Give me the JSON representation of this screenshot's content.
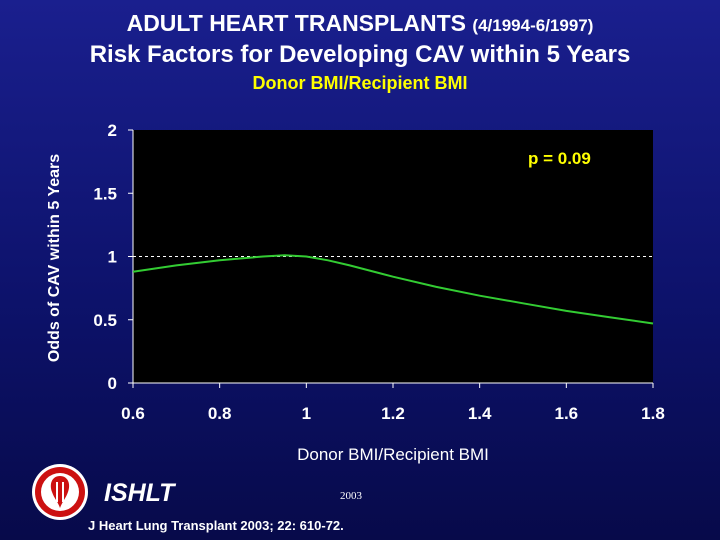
{
  "header": {
    "title_main": "ADULT HEART TRANSPLANTS",
    "title_range": "(4/1994-6/1997)",
    "title_line2": "Risk Factors for Developing CAV within 5 Years",
    "subtitle": "Donor BMI/Recipient BMI"
  },
  "chart_data": {
    "type": "line",
    "xlabel": "Donor BMI/Recipient BMI",
    "ylabel": "Odds of CAV within 5 Years",
    "xlim": [
      0.6,
      1.8
    ],
    "ylim": [
      0,
      2
    ],
    "x_ticks": [
      "0.6",
      "0.8",
      "1",
      "1.2",
      "1.4",
      "1.6",
      "1.8"
    ],
    "y_ticks": [
      "0",
      "0.5",
      "1",
      "1.5",
      "2"
    ],
    "series": [
      {
        "color": "#33cc33",
        "x": [
          0.6,
          0.7,
          0.8,
          0.9,
          0.95,
          1.0,
          1.05,
          1.1,
          1.2,
          1.3,
          1.4,
          1.5,
          1.6,
          1.7,
          1.8
        ],
        "y": [
          0.88,
          0.93,
          0.97,
          1.0,
          1.01,
          1.0,
          0.97,
          0.93,
          0.84,
          0.76,
          0.69,
          0.63,
          0.57,
          0.52,
          0.47
        ]
      }
    ],
    "reference_line": {
      "y": 1.0,
      "style": "dashed",
      "color": "#ffffff"
    },
    "annotation": "p = 0.09",
    "annotation_color": "#ffff00",
    "background": "#000000",
    "grid": false
  },
  "footer": {
    "organization": "ISHLT",
    "year": "2003",
    "citation": "J Heart Lung Transplant 2003; 22: 610-72."
  }
}
